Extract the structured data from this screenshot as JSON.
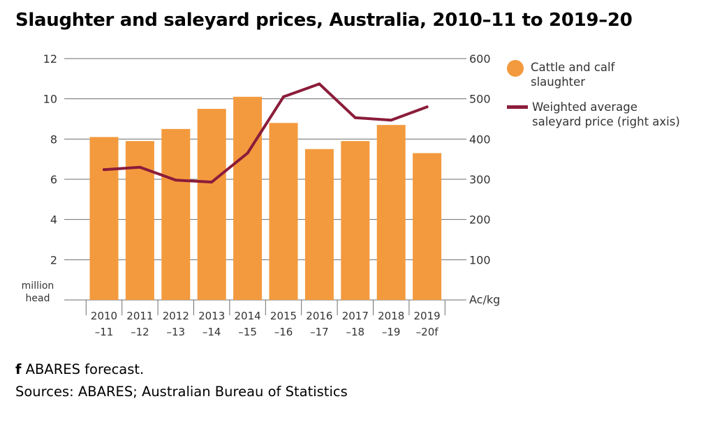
{
  "title": "Slaughter and saleyard prices, Australia, 2010–11 to 2019–20",
  "colors": {
    "bars": "#f39a3e",
    "line": "#8b1c3a",
    "grid": "#6e6e6e"
  },
  "legend": {
    "bars_line1": "Cattle and calf",
    "bars_line2": "slaughter",
    "line_line1": "Weighted average",
    "line_line2": "saleyard price (right axis)"
  },
  "notes": {
    "forecast_marker": "f",
    "forecast_text": " ABARES forecast.",
    "sources": "Sources: ABARES; Australian Bureau of Statistics"
  },
  "chart_data": {
    "type": "bar",
    "title": "Slaughter and saleyard prices, Australia, 2010–11 to 2019–20",
    "categories": [
      [
        "2010",
        "–11"
      ],
      [
        "2011",
        "–12"
      ],
      [
        "2012",
        "–13"
      ],
      [
        "2013",
        "–14"
      ],
      [
        "2014",
        "–15"
      ],
      [
        "2015",
        "–16"
      ],
      [
        "2016",
        "–17"
      ],
      [
        "2017",
        "–18"
      ],
      [
        "2018",
        "–19"
      ],
      [
        "2019",
        "–20f"
      ]
    ],
    "series": [
      {
        "name": "Cattle and calf slaughter",
        "type": "bar",
        "axis": "left",
        "values": [
          8.1,
          7.9,
          8.5,
          9.5,
          10.1,
          8.8,
          7.5,
          7.9,
          8.7,
          7.3
        ]
      },
      {
        "name": "Weighted average saleyard price (right axis)",
        "type": "line",
        "axis": "right",
        "values": [
          324,
          330,
          298,
          293,
          365,
          505,
          537,
          453,
          447,
          480
        ]
      }
    ],
    "yaxis_left": {
      "label_line1": "million",
      "label_line2": "head",
      "ylim": [
        0,
        12
      ],
      "ticks": [
        2,
        4,
        6,
        8,
        10,
        12
      ]
    },
    "yaxis_right": {
      "label": "Ac/kg",
      "ylim": [
        0,
        600
      ],
      "ticks": [
        100,
        200,
        300,
        400,
        500,
        600
      ]
    },
    "grid": true,
    "legend_position": "right"
  }
}
